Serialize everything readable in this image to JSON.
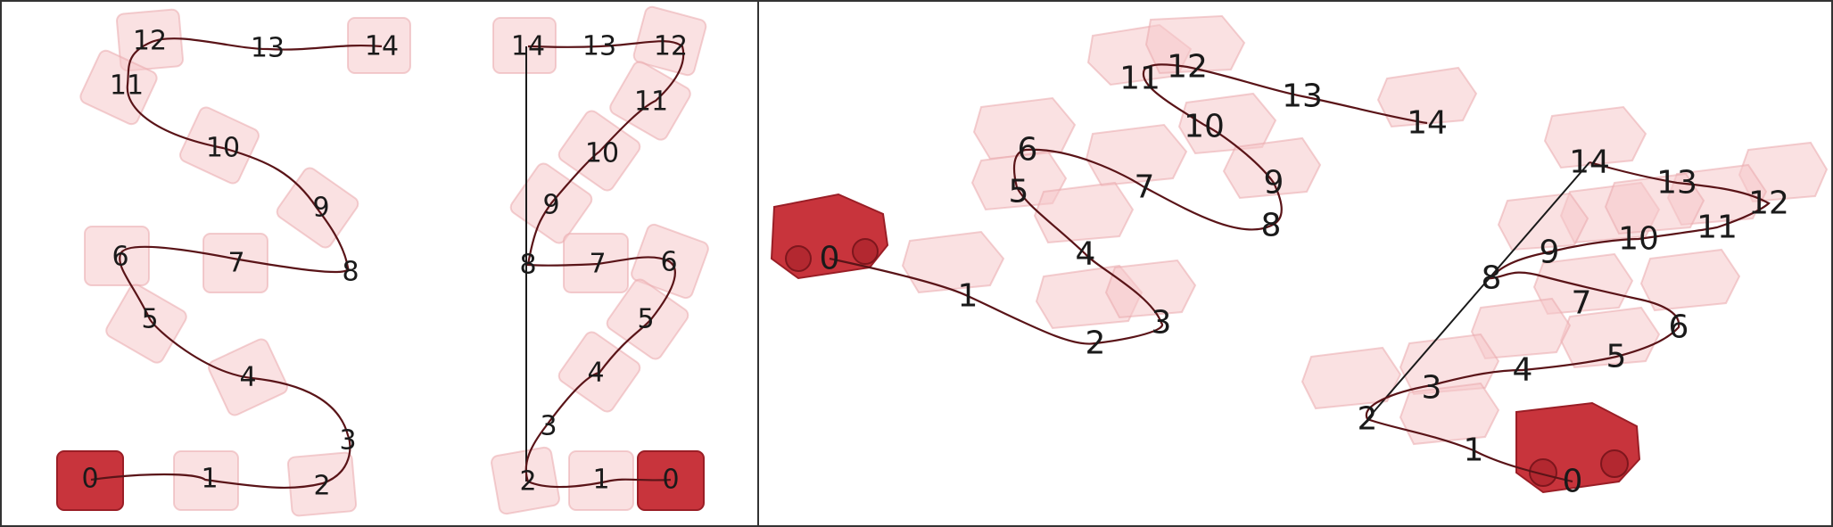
{
  "panels": [
    {
      "id": "panel-a",
      "labels": [
        "0",
        "1",
        "2",
        "3",
        "4",
        "5",
        "6",
        "7",
        "8",
        "9",
        "10",
        "11",
        "12",
        "13",
        "14"
      ]
    },
    {
      "id": "panel-b",
      "labels": [
        "0",
        "1",
        "2",
        "3",
        "4",
        "5",
        "6",
        "7",
        "8",
        "9",
        "10",
        "11",
        "12",
        "13",
        "14"
      ]
    },
    {
      "id": "panel-c",
      "labels": [
        "0",
        "1",
        "2",
        "3",
        "4",
        "5",
        "6",
        "7",
        "8",
        "9",
        "10",
        "11",
        "12",
        "13",
        "14"
      ]
    },
    {
      "id": "panel-d",
      "labels": [
        "0",
        "1",
        "2",
        "3",
        "4",
        "5",
        "6",
        "7",
        "8",
        "9",
        "10",
        "11",
        "12",
        "13",
        "14"
      ]
    }
  ],
  "colors": {
    "car_start": "#c8343c",
    "car_ghost": "#f5c9cb",
    "path_line": "#5a1418",
    "shortcut_line": "#1a1a1a",
    "frame": "#333333"
  }
}
